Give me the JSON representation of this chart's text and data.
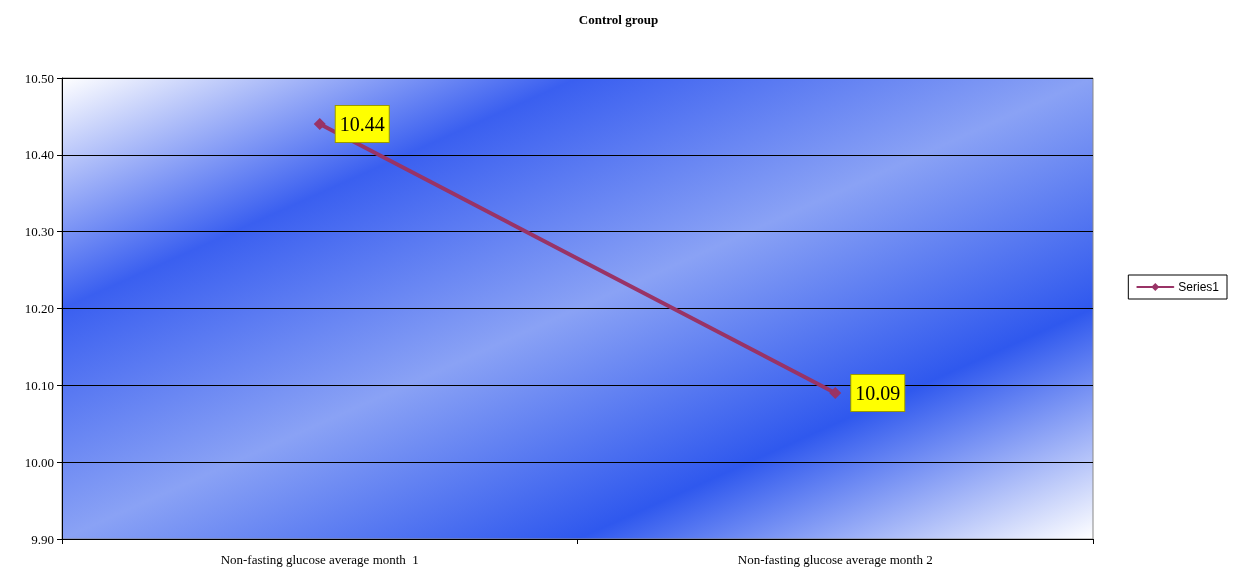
{
  "chart_data": {
    "type": "line",
    "title": "Control group",
    "categories": [
      "Non-fasting glucose average month  1",
      "Non-fasting glucose average month 2"
    ],
    "series": [
      {
        "name": "Series1",
        "color": "#993366",
        "values": [
          10.44,
          10.09
        ]
      }
    ],
    "ylim": [
      9.9,
      10.5
    ],
    "yticks": [
      {
        "value": 9.9,
        "label": "9.90"
      },
      {
        "value": 10.0,
        "label": "10.00"
      },
      {
        "value": 10.1,
        "label": "10.10"
      },
      {
        "value": 10.2,
        "label": "10.20"
      },
      {
        "value": 10.3,
        "label": "10.30"
      },
      {
        "value": 10.4,
        "label": "10.40"
      },
      {
        "value": 10.5,
        "label": "10.50"
      }
    ],
    "grid": "y",
    "legend": "right",
    "marker": "diamond",
    "line_style": "solid",
    "data_labels": true
  }
}
